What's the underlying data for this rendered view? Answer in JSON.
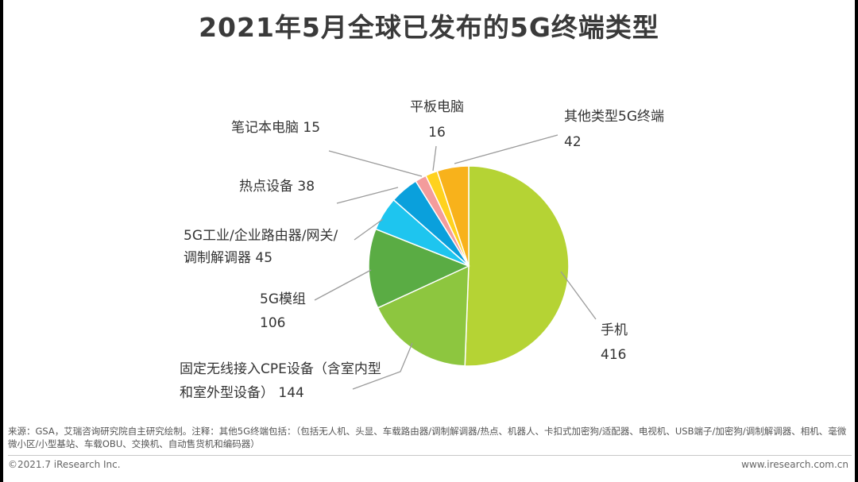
{
  "title": "2021年5月全球已发布的5G终端类型",
  "chart_data": {
    "type": "pie",
    "title": "2021年5月全球已发布的5G终端类型",
    "slices": [
      {
        "name": "手机",
        "value": 416,
        "color": "#b5d334",
        "label_lines": [
          "手机",
          "416"
        ]
      },
      {
        "name": "固定无线接入CPE设备（含室内型和室外型设备）",
        "value": 144,
        "color": "#8dc63f",
        "label_lines": [
          "固定无线接入CPE设备（含室内型",
          "和室外型设备） 144"
        ]
      },
      {
        "name": "5G模组",
        "value": 106,
        "color": "#5aac44",
        "label_lines": [
          "5G模组",
          "106"
        ]
      },
      {
        "name": "5G工业/企业路由器/网关/调制解调器",
        "value": 45,
        "color": "#1ec5ef",
        "label_lines": [
          "5G工业/企业路由器/网关/",
          "调制解调器 45"
        ]
      },
      {
        "name": "热点设备",
        "value": 38,
        "color": "#0aa0dc",
        "label_lines": [
          "热点设备 38"
        ]
      },
      {
        "name": "笔记本电脑",
        "value": 15,
        "color": "#f39c9c",
        "label_lines": [
          "笔记本电脑 15"
        ]
      },
      {
        "name": "平板电脑",
        "value": 16,
        "color": "#ffd21e",
        "label_lines": [
          "平板电脑",
          "16"
        ]
      },
      {
        "name": "其他类型5G终端",
        "value": 42,
        "color": "#f8b21b",
        "label_lines": [
          "其他类型5G终端",
          "42"
        ]
      }
    ]
  },
  "source_note": "来源：GSA，艾瑞咨询研究院自主研究绘制。注释：其他5G终端包括：（包括无人机、头显、车载路由器/调制解调器/热点、机器人、卡扣式加密狗/适配器、电视机、USB端子/加密狗/调制解调器、相机、毫微微小区/小型基站、车载OBU、交换机、自动售货机和编码器）",
  "footer_left": "©2021.7 iResearch Inc.",
  "footer_right": "www.iresearch.com.cn"
}
